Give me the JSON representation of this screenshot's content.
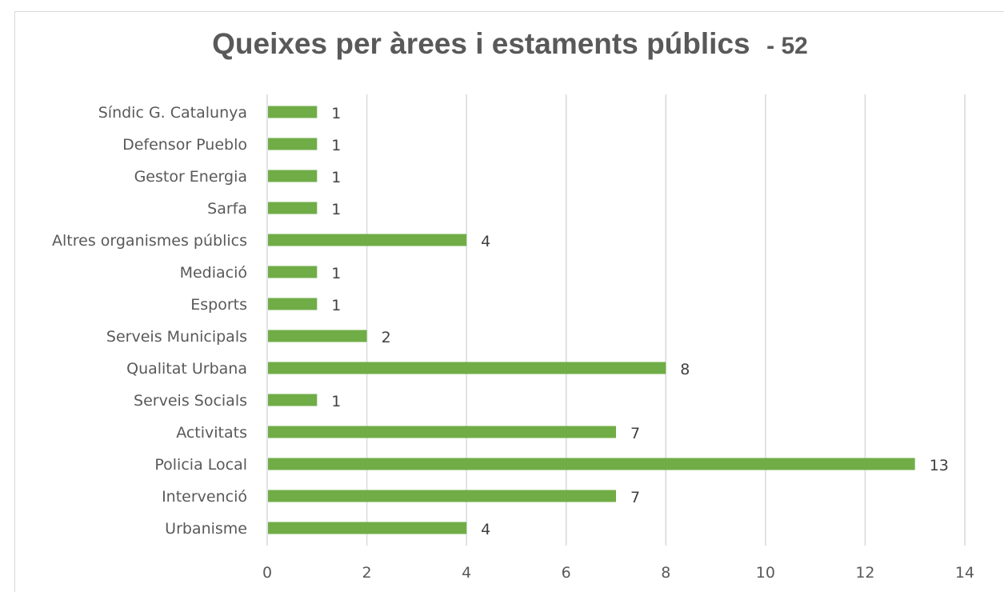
{
  "chart_data": {
    "type": "bar",
    "orientation": "horizontal",
    "title": "Queixes per àrees i estaments públics",
    "title_suffix": "- 52",
    "categories": [
      "Síndic G. Catalunya",
      "Defensor Pueblo",
      "Gestor Energia",
      "Sarfa",
      "Altres organismes públics",
      "Mediació",
      "Esports",
      "Serveis Municipals",
      "Qualitat Urbana",
      "Serveis Socials",
      "Activitats",
      "Policia Local",
      "Intervenció",
      "Urbanisme"
    ],
    "values": [
      1,
      1,
      1,
      1,
      4,
      1,
      1,
      2,
      8,
      1,
      7,
      13,
      7,
      4
    ],
    "xlim": [
      0,
      14
    ],
    "xticks": [
      0,
      2,
      4,
      6,
      8,
      10,
      12,
      14
    ],
    "grid": "vertical",
    "bar_color": "#70ad47",
    "data_labels": true,
    "xlabel": "",
    "ylabel": ""
  }
}
